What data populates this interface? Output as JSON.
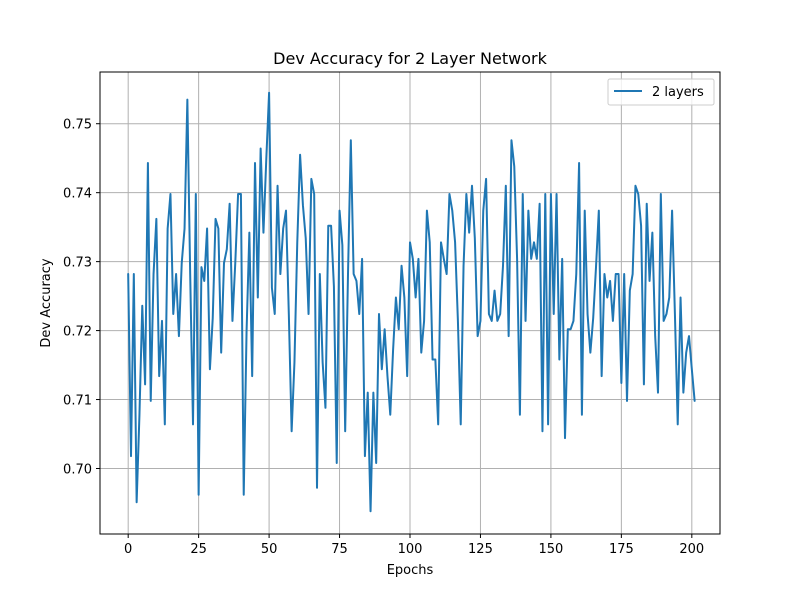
{
  "chart_data": {
    "type": "line",
    "title": "Dev Accuracy for 2 Layer Network",
    "xlabel": "Epochs",
    "ylabel": "Dev Accuracy",
    "xlim": [
      -10,
      210
    ],
    "ylim": [
      0.6905,
      0.7575
    ],
    "xticks": [
      0,
      25,
      50,
      75,
      100,
      125,
      150,
      175,
      200
    ],
    "xtick_labels": [
      "0",
      "25",
      "50",
      "75",
      "100",
      "125",
      "150",
      "175",
      "200"
    ],
    "yticks": [
      0.7,
      0.71,
      0.72,
      0.73,
      0.74,
      0.75
    ],
    "ytick_labels": [
      "0.70",
      "0.71",
      "0.72",
      "0.73",
      "0.74",
      "0.75"
    ],
    "grid": true,
    "legend_position": "top-right",
    "series": [
      {
        "name": "2 layers",
        "color": "#1f77b4",
        "x_start": 0,
        "x_step": 1,
        "values": [
          0.7282,
          0.7018,
          0.7282,
          0.6951,
          0.7078,
          0.7236,
          0.7122,
          0.7443,
          0.7098,
          0.7282,
          0.7362,
          0.7134,
          0.7214,
          0.7064,
          0.7348,
          0.7398,
          0.7224,
          0.7282,
          0.7192,
          0.7298,
          0.7348,
          0.7535,
          0.7282,
          0.7064,
          0.7398,
          0.6962,
          0.7292,
          0.7272,
          0.7348,
          0.7144,
          0.7218,
          0.7362,
          0.7348,
          0.7168,
          0.7298,
          0.7318,
          0.7384,
          0.7214,
          0.7298,
          0.7398,
          0.7398,
          0.6962,
          0.7198,
          0.7342,
          0.7134,
          0.7443,
          0.7248,
          0.7464,
          0.7342,
          0.7448,
          0.7545,
          0.7262,
          0.7224,
          0.741,
          0.7282,
          0.7348,
          0.7374,
          0.7224,
          0.7054,
          0.7154,
          0.7328,
          0.7455,
          0.7382,
          0.7334,
          0.7224,
          0.742,
          0.7398,
          0.6972,
          0.7282,
          0.7154,
          0.7088,
          0.7352,
          0.7352,
          0.7264,
          0.7008,
          0.7374,
          0.7324,
          0.7054,
          0.7282,
          0.7476,
          0.7282,
          0.7272,
          0.7224,
          0.7304,
          0.7018,
          0.711,
          0.6938,
          0.711,
          0.7008,
          0.7224,
          0.7144,
          0.7202,
          0.7134,
          0.7078,
          0.7172,
          0.7248,
          0.7202,
          0.7294,
          0.7248,
          0.7134,
          0.7328,
          0.7304,
          0.7248,
          0.7304,
          0.7168,
          0.7214,
          0.7374,
          0.7328,
          0.7158,
          0.7158,
          0.7064,
          0.7328,
          0.7304,
          0.7282,
          0.7398,
          0.7374,
          0.7328,
          0.7214,
          0.7064,
          0.7294,
          0.7398,
          0.7342,
          0.741,
          0.7334,
          0.7192,
          0.7214,
          0.7374,
          0.742,
          0.7224,
          0.7214,
          0.7258,
          0.7214,
          0.7224,
          0.7294,
          0.741,
          0.7192,
          0.7476,
          0.7438,
          0.7304,
          0.7078,
          0.7398,
          0.7214,
          0.7374,
          0.7304,
          0.7328,
          0.7304,
          0.7384,
          0.7054,
          0.7398,
          0.7064,
          0.7398,
          0.7224,
          0.7398,
          0.7158,
          0.7304,
          0.7044,
          0.7202,
          0.7202,
          0.7214,
          0.7282,
          0.7443,
          0.7078,
          0.7374,
          0.7224,
          0.7168,
          0.7218,
          0.7292,
          0.7374,
          0.7134,
          0.7282,
          0.7248,
          0.7272,
          0.7214,
          0.7282,
          0.7282,
          0.7124,
          0.7282,
          0.7098,
          0.7258,
          0.7282,
          0.741,
          0.7398,
          0.7352,
          0.7122,
          0.7384,
          0.7272,
          0.7342,
          0.7192,
          0.711,
          0.7398,
          0.7214,
          0.7224,
          0.7248,
          0.7374,
          0.7224,
          0.7064,
          0.7248,
          0.711,
          0.7168,
          0.7192,
          0.7144,
          0.7098
        ]
      }
    ]
  }
}
